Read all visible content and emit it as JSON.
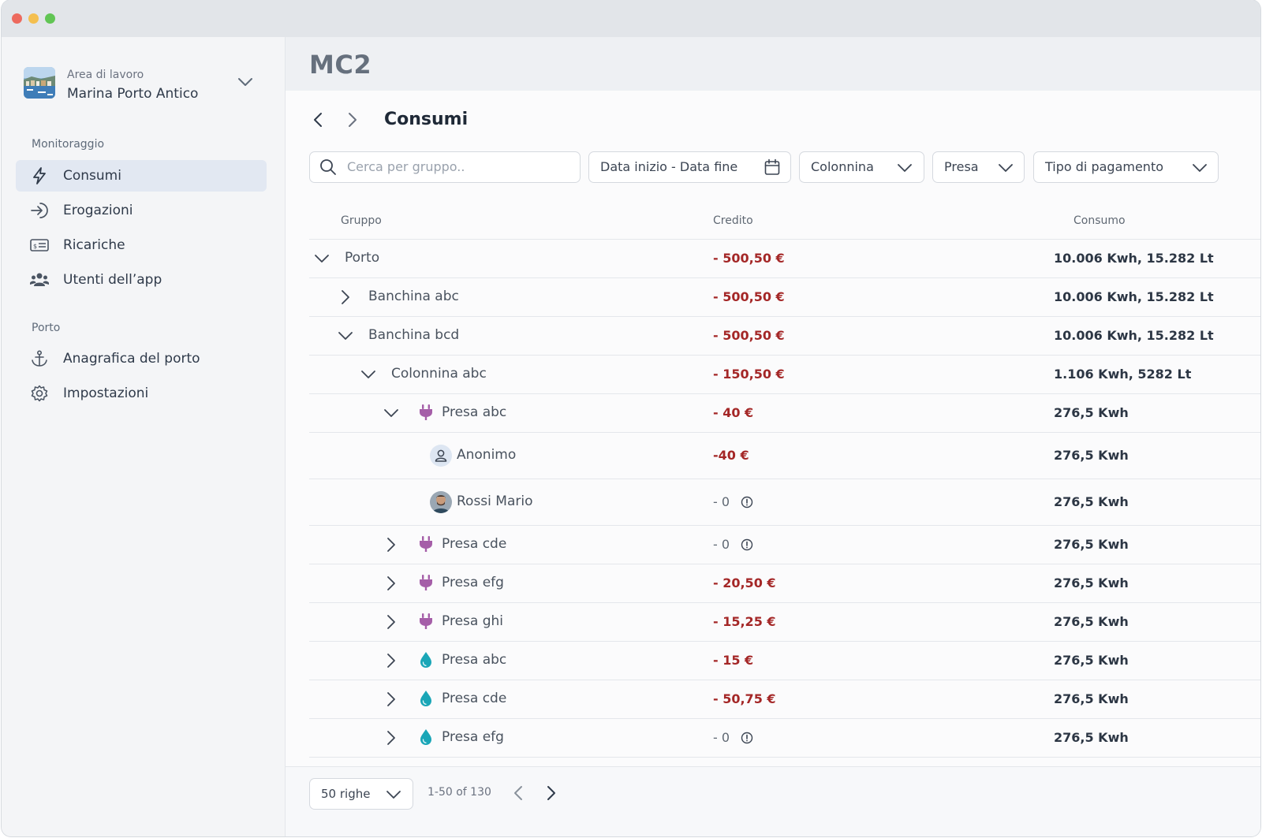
{
  "workspace": {
    "label": "Area di lavoro",
    "name": "Marina Porto Antico"
  },
  "sidebar": {
    "sections": [
      {
        "title": "Monitoraggio",
        "items": [
          {
            "label": "Consumi",
            "icon": "lightning-icon",
            "active": true
          },
          {
            "label": "Erogazioni",
            "icon": "arrow-right-enter-icon"
          },
          {
            "label": "Ricariche",
            "icon": "receipt-card-icon"
          },
          {
            "label": "Utenti dell’app",
            "icon": "users-icon"
          }
        ]
      },
      {
        "title": "Porto",
        "items": [
          {
            "label": "Anagrafica del porto",
            "icon": "anchor-icon"
          },
          {
            "label": "Impostazioni",
            "icon": "gear-icon"
          }
        ]
      }
    ]
  },
  "header": {
    "app_title": "MC2"
  },
  "page": {
    "title": "Consumi"
  },
  "filters": {
    "search_placeholder": "Cerca per gruppo..",
    "date_range": "Data inizio - Data fine",
    "colonnina": "Colonnina",
    "presa": "Presa",
    "tipo_pagamento": "Tipo di pagamento"
  },
  "table": {
    "columns": {
      "gruppo": "Gruppo",
      "credito": "Credito",
      "consumo": "Consumo"
    },
    "rows": [
      {
        "name": "Porto",
        "level": 0,
        "expander": "open",
        "credit": "- 500,50 €",
        "consumption": "10.006 Kwh, 15.282 Lt"
      },
      {
        "name": "Banchina abc",
        "level": 1,
        "expander": "closed",
        "credit": "- 500,50 €",
        "consumption": "10.006 Kwh, 15.282 Lt"
      },
      {
        "name": "Banchina bcd",
        "level": 1,
        "expander": "open",
        "credit": "- 500,50 €",
        "consumption": "10.006 Kwh, 15.282 Lt"
      },
      {
        "name": "Colonnina abc",
        "level": 2,
        "expander": "open",
        "credit": "- 150,50 €",
        "consumption": "1.106 Kwh, 5282 Lt"
      },
      {
        "name": "Presa abc",
        "level": 3,
        "expander": "open",
        "type": "electric",
        "credit": "- 40 €",
        "consumption": "276,5 Kwh"
      },
      {
        "name": "Anonimo",
        "level": 4,
        "user": "anonymous",
        "credit": "-40 €",
        "consumption": "276,5 Kwh"
      },
      {
        "name": "Rossi Mario",
        "level": 4,
        "user": "photo",
        "credit": "- 0",
        "credit_info": true,
        "consumption": "276,5 Kwh"
      },
      {
        "name": "Presa cde",
        "level": 3,
        "expander": "closed",
        "type": "electric",
        "credit": "- 0",
        "credit_info": true,
        "consumption": "276,5 Kwh"
      },
      {
        "name": "Presa efg",
        "level": 3,
        "expander": "closed",
        "type": "electric",
        "credit": "- 20,50 €",
        "consumption": "276,5 Kwh"
      },
      {
        "name": "Presa ghi",
        "level": 3,
        "expander": "closed",
        "type": "electric",
        "credit": "- 15,25 €",
        "consumption": "276,5 Kwh"
      },
      {
        "name": "Presa abc",
        "level": 3,
        "expander": "closed",
        "type": "water",
        "credit": "- 15 €",
        "consumption": "276,5 Kwh"
      },
      {
        "name": "Presa cde",
        "level": 3,
        "expander": "closed",
        "type": "water",
        "credit": "- 50,75 €",
        "consumption": "276,5 Kwh"
      },
      {
        "name": "Presa efg",
        "level": 3,
        "expander": "closed",
        "type": "water",
        "credit": "- 0",
        "credit_info": true,
        "consumption": "276,5 Kwh"
      }
    ]
  },
  "pagination": {
    "rows_per_page": "50 righe",
    "range": "1-50 of 130"
  },
  "colors": {
    "credit_negative": "#a42727",
    "electric_plug": "#a55ea8",
    "water_drop": "#1aa6b7",
    "active_nav_bg": "#e2e8f2"
  }
}
